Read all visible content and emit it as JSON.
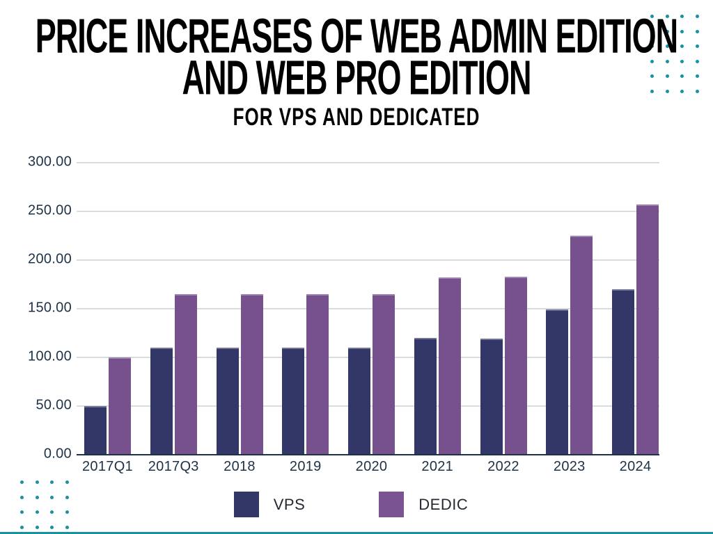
{
  "header": {
    "title_line1": "PRICE INCREASES OF WEB ADMIN EDITION",
    "title_line2": "AND WEB PRO EDITION",
    "subtitle": "FOR VPS AND DEDICATED"
  },
  "chart_data": {
    "type": "bar",
    "title": "Price increases of Web Admin Edition and Web Pro Edition",
    "subtitle": "For VPS and Dedicated",
    "categories": [
      "2017Q1",
      "2017Q3",
      "2018",
      "2019",
      "2020",
      "2021",
      "2022",
      "2023",
      "2024"
    ],
    "series": [
      {
        "name": "VPS",
        "color": "#333767",
        "values": [
          50,
          110,
          110,
          110,
          110,
          120,
          119,
          149,
          170
        ]
      },
      {
        "name": "DEDIC",
        "color": "#76518E",
        "values": [
          100,
          165,
          165,
          165,
          165,
          182,
          183,
          225,
          257
        ]
      }
    ],
    "xlabel": "",
    "ylabel": "",
    "ylim": [
      0,
      300
    ],
    "ytick_step": 50,
    "ytick_labels": [
      "300.00",
      "250.00",
      "200.00",
      "150.00",
      "100.00",
      "50.00",
      "0.00"
    ],
    "grid": true,
    "legend_position": "bottom"
  },
  "legend": {
    "items": [
      {
        "label": "VPS",
        "color": "#333767"
      },
      {
        "label": "DEDIC",
        "color": "#7A5492"
      }
    ]
  },
  "colors": {
    "background": "#ffffff",
    "title_text": "#000000",
    "axis_text": "#1d3147",
    "gridline": "#d7dce1",
    "axis_line": "#1d3147",
    "accent_dots": "#1692a0",
    "bottom_bar": "#1692a0"
  }
}
